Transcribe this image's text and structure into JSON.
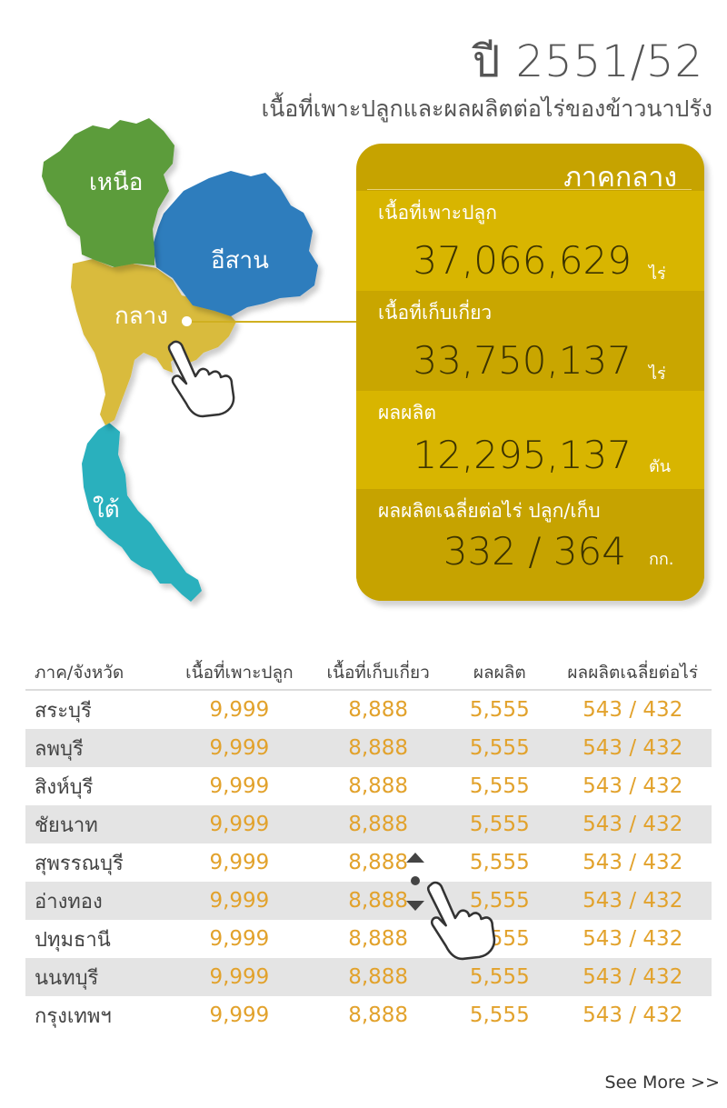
{
  "header": {
    "year": "ปี 2551/52",
    "subtitle": "เนื้อที่เพาะปลูกและผลผลิตต่อไร่ของข้าวนาปรัง"
  },
  "map": {
    "regions": {
      "north": "เหนือ",
      "northeast": "อีสาน",
      "central": "กลาง",
      "south": "ใต้"
    },
    "colors": {
      "north": "#5b9c3a",
      "northeast": "#2e7dbd",
      "central": "#d9bb3e",
      "south": "#2bb0bd"
    }
  },
  "panel": {
    "title": "ภาคกลาง",
    "rows": [
      {
        "label": "เนื้อที่เพาะปลูก",
        "value": "37,066,629",
        "unit": "ไร่"
      },
      {
        "label": "เนื้อที่เก็บเกี่ยว",
        "value": "33,750,137",
        "unit": "ไร่"
      },
      {
        "label": "ผลผลิต",
        "value": "12,295,137",
        "unit": "ตัน"
      },
      {
        "label": "ผลผลิตเฉลี่ยต่อไร่ ปลูก/เก็บ",
        "value": "332 / 364",
        "unit": "กก."
      }
    ]
  },
  "table": {
    "headers": [
      "ภาค/จังหวัด",
      "เนื้อที่เพาะปลูก",
      "เนื้อที่เก็บเกี่ยว",
      "ผลผลิต",
      "ผลผลิตเฉลี่ยต่อไร่"
    ],
    "rows": [
      [
        "สระบุรี",
        "9,999",
        "8,888",
        "5,555",
        "543  /  432"
      ],
      [
        "ลพบุรี",
        "9,999",
        "8,888",
        "5,555",
        "543  /  432"
      ],
      [
        "สิงห์บุรี",
        "9,999",
        "8,888",
        "5,555",
        "543  /  432"
      ],
      [
        "ชัยนาท",
        "9,999",
        "8,888",
        "5,555",
        "543  /  432"
      ],
      [
        "สุพรรณบุรี",
        "9,999",
        "8,888",
        "5,555",
        "543  /  432"
      ],
      [
        "อ่างทอง",
        "9,999",
        "8,888",
        "5,555",
        "543  /  432"
      ],
      [
        "ปทุมธานี",
        "9,999",
        "8,888",
        "5,555",
        "543  /  432"
      ],
      [
        "นนทบุรี",
        "9,999",
        "8,888",
        "5,555",
        "543  /  432"
      ],
      [
        "กรุงเทพฯ",
        "9,999",
        "8,888",
        "5,555",
        "543  /  432"
      ]
    ]
  },
  "footer": {
    "see_more": "See More >>"
  }
}
